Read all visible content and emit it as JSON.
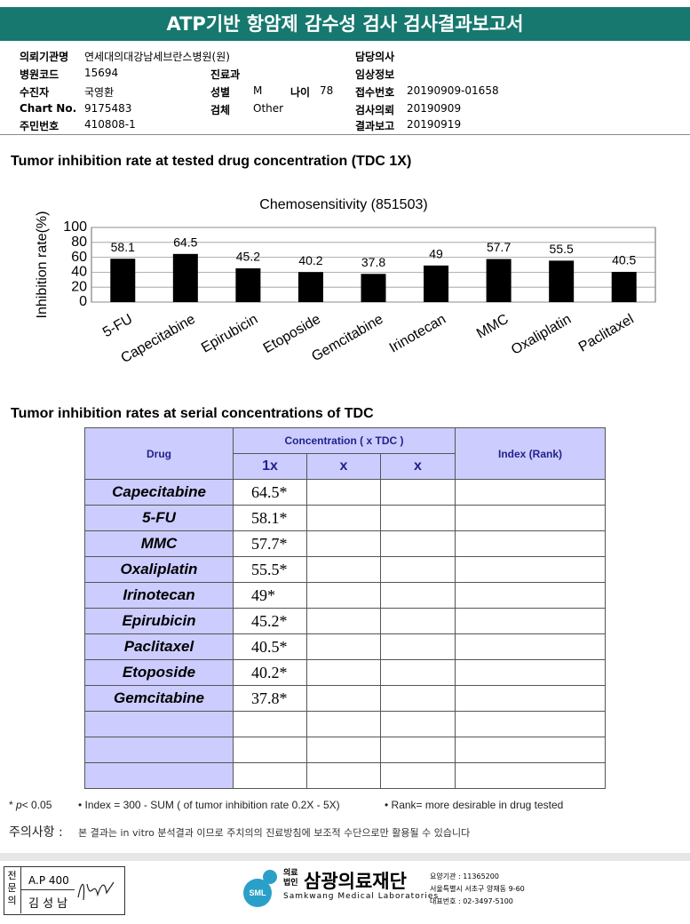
{
  "header": {
    "title": "ATP기반 항암제 감수성 검사 검사결과보고서"
  },
  "info": [
    {
      "label": "의뢰기관명",
      "value": "연세대의대강남세브란스병원(원)"
    },
    {
      "label": "담당의사"
    },
    {
      "label": "병원코드",
      "value": "15694"
    },
    {
      "label": "진료과"
    },
    {
      "label": "임상정보"
    },
    {
      "label": "수진자",
      "value": "국영환"
    },
    {
      "label": "성별",
      "value": "M"
    },
    {
      "label": "나이",
      "value": "78"
    },
    {
      "label": "접수번호",
      "value": "20190909-01658"
    },
    {
      "label": "Chart No.",
      "value": "9175483"
    },
    {
      "label": "검체",
      "value": "Other"
    },
    {
      "label": "검사의뢰",
      "value": "20190909"
    },
    {
      "label": "주민번호",
      "value": "410808-1"
    },
    {
      "label": "결과보고",
      "value": "20190919"
    }
  ],
  "section1": {
    "heading": "Tumor inhibition rate at tested drug concentration (TDC 1X)"
  },
  "chart_data": {
    "type": "bar",
    "title": "Chemosensitivity (851503)",
    "y_label": "Inhibition rate(%)",
    "categories": [
      "5-FU",
      "Capecitabine",
      "Epirubicin",
      "Etoposide",
      "Gemcitabine",
      "Irinotecan",
      "MMC",
      "Oxaliplatin",
      "Paclitaxel"
    ],
    "values": [
      58.1,
      64.5,
      45.2,
      40.2,
      37.8,
      49,
      57.7,
      55.5,
      40.5
    ],
    "color": "#000000",
    "ylim": [
      0,
      100
    ],
    "yticks": [
      0,
      20,
      40,
      60,
      80,
      100
    ],
    "grid": true
  },
  "section2": {
    "heading": "Tumor inhibition rates at serial concentrations of TDC"
  },
  "table": {
    "headers": {
      "drug": "Drug",
      "concentration": "Concentration ( x TDC )",
      "index": "Index (Rank)",
      "sub": [
        "1x",
        "x",
        "x"
      ]
    },
    "rows": [
      {
        "drug": "Capecitabine",
        "value": "64.5*"
      },
      {
        "drug": "5-FU",
        "value": "58.1*"
      },
      {
        "drug": "MMC",
        "value": "57.7*"
      },
      {
        "drug": "Oxaliplatin",
        "value": "55.5*"
      },
      {
        "drug": "Irinotecan",
        "value": "49*"
      },
      {
        "drug": "Epirubicin",
        "value": "45.2*"
      },
      {
        "drug": "Paclitaxel",
        "value": "40.5*"
      },
      {
        "drug": "Etoposide",
        "value": "40.2*"
      },
      {
        "drug": "Gemcitabine",
        "value": "37.8*"
      }
    ]
  },
  "footnotes": {
    "star": "*",
    "p": "p",
    "threshold": "< 0.05",
    "index": "• Index = 300 - SUM ( of tumor inhibition rate 0.2X  -  5X)",
    "rank": "• Rank= more desirable in drug tested"
  },
  "notice": {
    "label": "주의사항 :",
    "text": "본 결과는 in vitro 분석결과 이므로 주치의의 진료방침에 보조적 수단으로만 활용될 수 있습니다"
  },
  "footer": {
    "signer": {
      "title": "전문의",
      "code": "A.P 400",
      "name": "김 성 남"
    },
    "org": {
      "type_top": "의료",
      "type_bottom": "법인",
      "name": "삼광의료재단",
      "english": "Samkwang Medical Laboratories",
      "logo": "SML",
      "code": "요양기관 : 11365200",
      "address": "서울특별시 서초구 양재동 9-60",
      "phone": "대표번호 : 02-3497-5100"
    }
  }
}
